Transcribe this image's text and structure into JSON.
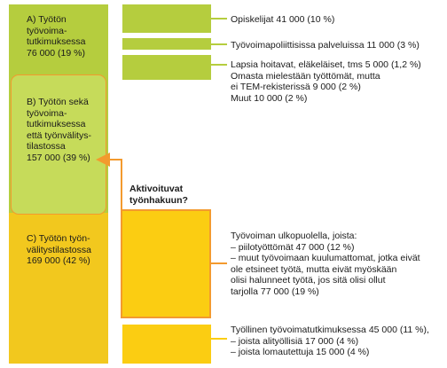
{
  "colors": {
    "green": "#b5cd3e",
    "green_light": "#c6db5a",
    "yellow": "#f2c81e",
    "yellow_bright": "#fbcd12",
    "orange": "#f39a2e",
    "line": "#b5cd3e"
  },
  "boxA": {
    "text": "A) Työtön\ntyövoima-\ntutkimuksessa\n76 000 (19 %)"
  },
  "boxB": {
    "text": "B) Työtön sekä\ntyövoima-\ntutkimuksessa\nettä työnvälitys-\ntilastossa\n157 000 (39 %)"
  },
  "boxC": {
    "text": "C) Työtön työn-\nvälitystilastossa\n169 000 (42 %)"
  },
  "question": {
    "text": "Aktivoituvat\ntyönhakuun?"
  },
  "right": {
    "r1": "Opiskelijat 41 000 (10 %)",
    "r2": "Työvoimapoliittisissa palveluissa 11 000 (3 %)",
    "r3": "Lapsia hoitavat, eläkeläiset, tms 5 000 (1,2 %)\nOmasta mielestään työttömät, mutta\nei TEM-rekisterissä 9 000 (2 %)\nMuut 10 000 (2 %)",
    "r4": "Työvoiman ulkopuolella, joista:\n– piilotyöttömät 47 000 (12 %)\n– muut työvoimaan kuulumattomat, jotka eivät\n   ole etsineet työtä, mutta eivät myöskään\n   olisi halunneet työtä, jos sitä olisi ollut\n   tarjolla 77 000 (19 %)",
    "r5": "Työllinen työvoimatutkimuksessa 45 000 (11 %),\n– joista alityöllisiä 17 000 (4 %)\n– joista lomautettuja 15 000 (4 %)"
  }
}
